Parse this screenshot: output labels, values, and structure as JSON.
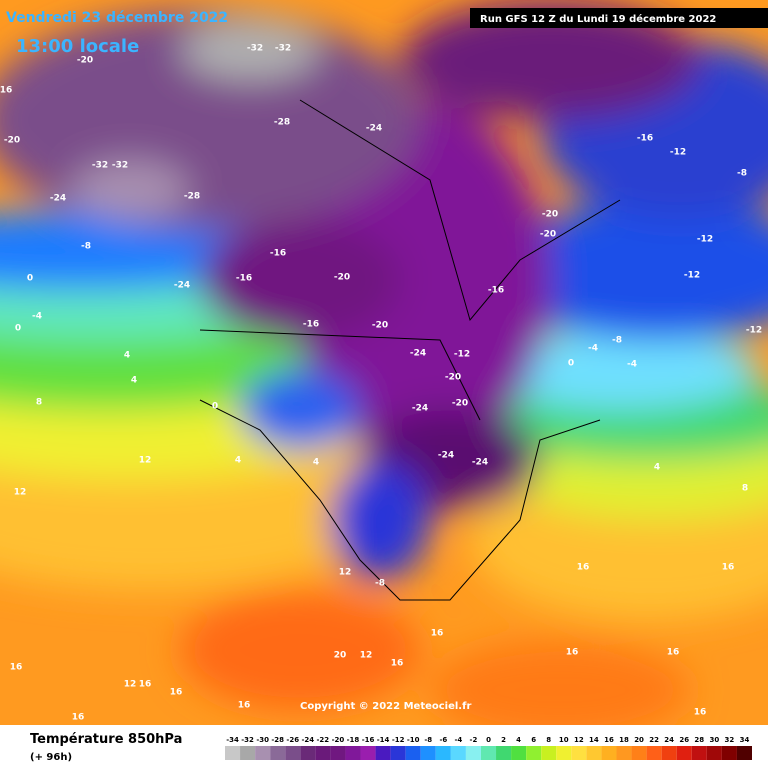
{
  "header": {
    "date": "Vendredi 23 décembre 2022",
    "time": "13:00 locale",
    "run": "Run GFS 12 Z du Lundi 19 décembre 2022"
  },
  "copyright": "Copyright © 2022 Meteociel.fr",
  "legend": {
    "title": "Température 850hPa",
    "subtitle": "(+ 96h)",
    "ticks": [
      -34,
      -32,
      -30,
      -28,
      -26,
      -24,
      -22,
      -20,
      -18,
      -16,
      -14,
      -12,
      -10,
      -8,
      -6,
      -4,
      -2,
      0,
      2,
      4,
      6,
      8,
      10,
      12,
      14,
      16,
      18,
      20,
      22,
      24,
      26,
      28,
      30,
      32,
      34
    ],
    "colors": [
      "#c8c8c8",
      "#a8a8a8",
      "#a890b0",
      "#8a6a98",
      "#7a4e8a",
      "#6a2a78",
      "#6a1a7a",
      "#701880",
      "#80189a",
      "#9a1eae",
      "#4a1ac0",
      "#2a36d8",
      "#1a60f0",
      "#1e90ff",
      "#2ab8ff",
      "#5ad8ff",
      "#88f0f0",
      "#60e8b0",
      "#40d870",
      "#50e040",
      "#90f030",
      "#c8f020",
      "#f0f030",
      "#ffe040",
      "#ffc830",
      "#ffb020",
      "#ff9820",
      "#ff8018",
      "#ff6018",
      "#f04010",
      "#e02010",
      "#c01010",
      "#a00808",
      "#800000",
      "#500000"
    ]
  },
  "map_labels": [
    -32,
    -32,
    -20,
    -28,
    -24,
    -20,
    -16,
    -12,
    -8,
    -32,
    -32,
    -28,
    -24,
    -20,
    -20,
    -12,
    -8,
    -16,
    -16,
    -20,
    -24,
    -12,
    -16,
    -20,
    -16,
    -12,
    0,
    -4,
    0,
    4,
    4,
    8,
    -24,
    -12,
    -20,
    -20,
    -24,
    -8,
    -4,
    -4,
    0,
    12,
    4,
    -24,
    -24,
    12,
    4,
    8,
    16,
    16,
    -8,
    12,
    16,
    20,
    12,
    16,
    16,
    16,
    12,
    16,
    16,
    16,
    16,
    16,
    16,
    16,
    0,
    4
  ]
}
